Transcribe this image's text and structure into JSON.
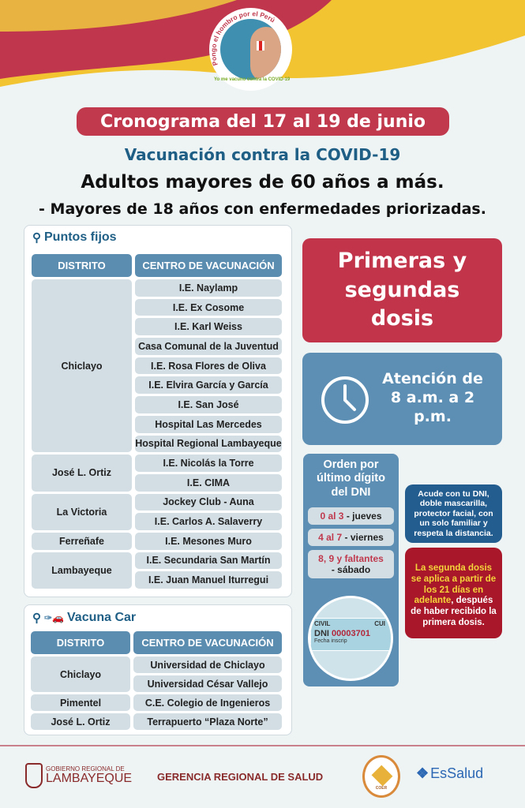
{
  "badge": {
    "top_text": "Pongo el hombro por el Perú",
    "bottom_text": "Yo me vacuno contra la COVID-19"
  },
  "header": {
    "schedule": "Cronograma del 17 al 19 de junio",
    "campaign": "Vacunación contra la COVID-19",
    "audience": "Adultos mayores de 60 años a más.",
    "audience2": "- Mayores de 18 años con enfermedades priorizadas."
  },
  "puntos_fijos": {
    "title": "Puntos fijos",
    "col_district": "DISTRITO",
    "col_center": "CENTRO DE VACUNACIÓN",
    "groups": [
      {
        "district": "Chiclayo",
        "centers": [
          "I.E. Naylamp",
          "I.E. Ex Cosome",
          "I.E. Karl Weiss",
          "Casa Comunal de la Juventud",
          "I.E. Rosa Flores de Oliva",
          "I.E. Elvira García y García",
          "I.E. San José",
          "Hospital Las Mercedes",
          "Hospital Regional Lambayeque"
        ]
      },
      {
        "district": "José L. Ortiz",
        "centers": [
          "I.E. Nicolás la Torre",
          "I.E. CIMA"
        ]
      },
      {
        "district": "La Victoria",
        "centers": [
          "Jockey Club - Auna",
          "I.E. Carlos A. Salaverry"
        ]
      },
      {
        "district": "Ferreñafe",
        "centers": [
          "I.E. Mesones Muro"
        ]
      },
      {
        "district": "Lambayeque",
        "centers": [
          "I.E. Secundaria San Martín",
          "I.E. Juan Manuel Iturregui"
        ]
      }
    ]
  },
  "vacuna_car": {
    "title": "Vacuna Car",
    "col_district": "DISTRITO",
    "col_center": "CENTRO DE VACUNACIÓN",
    "groups": [
      {
        "district": "Chiclayo",
        "centers": [
          "Universidad de Chiclayo",
          "Universidad César Vallejo"
        ]
      },
      {
        "district": "Pimentel",
        "centers": [
          "C.E. Colegio de Ingenieros"
        ]
      },
      {
        "district": "José L. Ortiz",
        "centers": [
          "Terrapuerto “Plaza Norte”"
        ]
      }
    ]
  },
  "doses": "Primeras y segundas dosis",
  "hours": "Atención de 8 a.m. a 2 p.m.",
  "dni_order": {
    "title": "Orden por último dígito del DNI",
    "days": [
      {
        "digits": "0 al 3",
        "day": "- jueves"
      },
      {
        "digits": "4 al 7",
        "day": "- viernes"
      },
      {
        "digits": "8, 9 y faltantes",
        "day": "- sábado"
      }
    ],
    "card": {
      "label_civil": "CIVIL",
      "label_cui": "CUI",
      "label_dni": "DNI",
      "number": "00003701",
      "fecha": "Fecha inscrip"
    }
  },
  "notes": {
    "requirements": "Acude con tu DNI, doble mascarilla, protector facial, con un solo familiar y respeta la distancia.",
    "second_dose_highlight": "La segunda dosis se aplica a partir de los 21 días en adelante",
    "second_dose_rest": ", después de haber recibido la primera dosis."
  },
  "footer": {
    "gov_small": "GOBIERNO REGIONAL DE",
    "gov_big": "LAMBAYEQUE",
    "gerencia": "GERENCIA REGIONAL DE SALUD",
    "coer": "COER",
    "essalud": "EsSalud"
  },
  "colors": {
    "red": "#c0394d",
    "blue": "#5b8db0",
    "dark_blue": "#1f5f86",
    "cell": "#d2dee4",
    "yellow": "#f5d33b"
  }
}
